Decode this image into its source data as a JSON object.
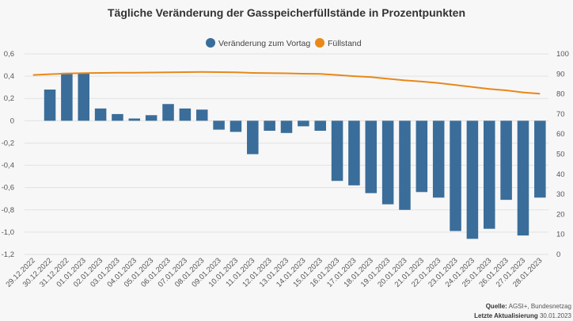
{
  "chart_data": {
    "type": "bar",
    "title": "Tägliche Veränderung der Gasspeicherfüllstände in Prozentpunkten",
    "categories": [
      "29.12.2022",
      "30.12.2022",
      "31.12.2022",
      "01.01.2023",
      "02.01.2023",
      "03.01.2023",
      "04.01.2023",
      "05.01.2023",
      "06.01.2023",
      "07.01.2023",
      "08.01.2023",
      "09.01.2023",
      "10.01.2023",
      "11.01.2023",
      "12.01.2023",
      "13.01.2023",
      "14.01.2023",
      "15.01.2023",
      "16.01.2023",
      "17.01.2023",
      "18.01.2023",
      "19.01.2023",
      "20.01.2023",
      "21.01.2023",
      "22.01.2023",
      "23.01.2023",
      "24.01.2023",
      "25.01.2023",
      "26.01.2023",
      "27.01.2023",
      "28.01.2023"
    ],
    "series": [
      {
        "name": "Veränderung zum Vortag",
        "type": "bar",
        "axis": "left",
        "color": "#3a6d9a",
        "values": [
          null,
          0.28,
          0.43,
          0.43,
          0.11,
          0.06,
          0.02,
          0.05,
          0.15,
          0.11,
          0.1,
          -0.08,
          -0.1,
          -0.3,
          -0.09,
          -0.11,
          -0.05,
          -0.09,
          -0.54,
          -0.58,
          -0.65,
          -0.75,
          -0.8,
          -0.64,
          -0.69,
          -0.99,
          -1.06,
          -0.97,
          -0.71,
          -1.03,
          -0.69
        ]
      },
      {
        "name": "Füllstand",
        "type": "line",
        "axis": "right",
        "color": "#e8881a",
        "values": [
          89.5,
          89.9,
          90.2,
          90.4,
          90.5,
          90.6,
          90.6,
          90.7,
          90.8,
          90.9,
          91.0,
          90.9,
          90.8,
          90.5,
          90.4,
          90.3,
          90.1,
          90.0,
          89.5,
          88.9,
          88.4,
          87.6,
          86.8,
          86.2,
          85.5,
          84.5,
          83.5,
          82.5,
          81.8,
          80.8,
          80.1
        ]
      }
    ],
    "y_left": {
      "min": -1.2,
      "max": 0.6,
      "ticks": [
        "0,6",
        "0,4",
        "0,2",
        "0",
        "-0,2",
        "-0,4",
        "-0,6",
        "-0,8",
        "-1,0",
        "-1,2"
      ]
    },
    "y_right": {
      "min": 0,
      "max": 100,
      "ticks": [
        "100",
        "90",
        "80",
        "70",
        "60",
        "50",
        "40",
        "30",
        "20",
        "10",
        "0"
      ]
    },
    "legend": {
      "position": "top",
      "items": [
        "Veränderung zum Vortag",
        "Füllstand"
      ]
    },
    "grid": true
  },
  "source": {
    "line1_label": "Quelle:",
    "line1_text": "AGSI+, Bundesnetzag",
    "line2_label": "Letzte Aktualisierung",
    "line2_text": "30.01.2023"
  }
}
